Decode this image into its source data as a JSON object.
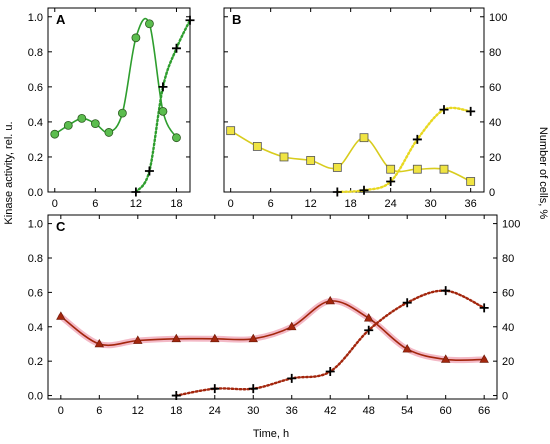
{
  "figure": {
    "y_left_label": "Kinase activity, rel. u.",
    "y_right_label": "Number of cells, %",
    "x_label": "Time, h"
  },
  "chart_data": [
    {
      "panel": "A",
      "type": "line",
      "x_ticks": [
        0,
        6,
        12,
        18
      ],
      "y_left_ticks": [
        "0.0",
        "0.2",
        "0.4",
        "0.6",
        "0.8",
        "1.0"
      ],
      "xlim": [
        -1,
        20
      ],
      "ylim_left": [
        0,
        1.05
      ],
      "ylim_right": [
        0,
        105
      ],
      "series": [
        {
          "axis": "left",
          "color": "#2e9e2e",
          "marker_fill": "#5bbd4e",
          "marker": "circle",
          "line": "solid",
          "x": [
            0,
            2,
            4,
            6,
            8,
            10,
            12,
            14,
            16,
            18
          ],
          "y": [
            0.33,
            0.38,
            0.42,
            0.39,
            0.34,
            0.45,
            0.88,
            0.96,
            0.46,
            0.31
          ]
        },
        {
          "axis": "right",
          "color": "#2e9e2e",
          "marker": "plus",
          "line": "dotted",
          "x": [
            12,
            14,
            16,
            18,
            20
          ],
          "y": [
            0,
            12,
            60,
            82,
            98
          ]
        }
      ]
    },
    {
      "panel": "B",
      "type": "line",
      "x_ticks": [
        0,
        6,
        12,
        18,
        24,
        30,
        36
      ],
      "y_right_ticks": [
        "0",
        "20",
        "40",
        "60",
        "80",
        "100"
      ],
      "xlim": [
        -1,
        38
      ],
      "ylim_left": [
        0,
        1.05
      ],
      "ylim_right": [
        0,
        105
      ],
      "series": [
        {
          "axis": "left",
          "color": "#d8cc1e",
          "marker_fill": "#f0e442",
          "marker": "square",
          "line": "solid",
          "x": [
            0,
            4,
            8,
            12,
            16,
            20,
            24,
            28,
            32,
            36
          ],
          "y": [
            0.35,
            0.26,
            0.2,
            0.18,
            0.14,
            0.31,
            0.13,
            0.13,
            0.13,
            0.06
          ]
        },
        {
          "axis": "right",
          "color": "#e8d820",
          "marker": "plus",
          "line": "dotted",
          "x": [
            16,
            20,
            24,
            28,
            32,
            36
          ],
          "y": [
            0,
            1,
            6,
            30,
            47,
            46
          ]
        }
      ]
    },
    {
      "panel": "C",
      "type": "line",
      "x_ticks": [
        0,
        6,
        12,
        18,
        24,
        30,
        36,
        42,
        48,
        54,
        60,
        66
      ],
      "y_left_ticks": [
        "0.0",
        "0.2",
        "0.4",
        "0.6",
        "0.8",
        "1.0"
      ],
      "y_right_ticks": [
        "0",
        "20",
        "40",
        "60",
        "80",
        "100"
      ],
      "xlim": [
        -2,
        68
      ],
      "ylim_left": [
        -0.02,
        1.05
      ],
      "ylim_right": [
        -2,
        105
      ],
      "series": [
        {
          "axis": "left",
          "color": "#a3260d",
          "marker_fill": "#a3260d",
          "marker": "triangle",
          "line": "solid",
          "x": [
            0,
            6,
            12,
            18,
            24,
            30,
            36,
            42,
            48,
            54,
            60,
            66
          ],
          "y": [
            0.46,
            0.3,
            0.32,
            0.33,
            0.33,
            0.33,
            0.4,
            0.55,
            0.45,
            0.27,
            0.21,
            0.21
          ]
        },
        {
          "axis": "right",
          "color": "#a3260d",
          "marker": "plus",
          "line": "dotted",
          "x": [
            18,
            24,
            30,
            36,
            42,
            48,
            54,
            60,
            66
          ],
          "y": [
            0,
            4,
            4,
            10,
            14,
            38,
            54,
            61,
            51
          ]
        }
      ]
    }
  ]
}
